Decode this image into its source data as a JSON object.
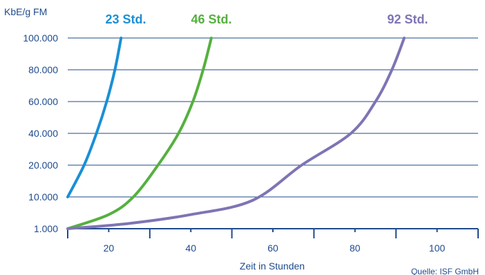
{
  "chart_data": {
    "type": "line",
    "ylabel": "KbE/g FM",
    "xlabel": "Zeit in Stunden",
    "source": "Quelle: ISF GmbH",
    "x_ticks": [
      20,
      40,
      60,
      80,
      100
    ],
    "y_ticks": [
      "1.000",
      "10.000",
      "20.000",
      "40.000",
      "60.000",
      "80.000",
      "100.000"
    ],
    "y_tick_values": [
      1000,
      10000,
      20000,
      40000,
      60000,
      80000,
      100000
    ],
    "xlim": [
      10,
      110
    ],
    "grid": true,
    "series": [
      {
        "name": "23 Std.",
        "color": "#1a8fd6",
        "points": [
          [
            10,
            10000
          ],
          [
            14,
            20000
          ],
          [
            17,
            40000
          ],
          [
            19.5,
            60000
          ],
          [
            21.5,
            80000
          ],
          [
            23,
            100000
          ]
        ]
      },
      {
        "name": "46 Std.",
        "color": "#55b03f",
        "points": [
          [
            10,
            1000
          ],
          [
            20,
            5000
          ],
          [
            26,
            10000
          ],
          [
            32,
            20000
          ],
          [
            37,
            40000
          ],
          [
            40.5,
            60000
          ],
          [
            43,
            80000
          ],
          [
            45,
            100000
          ]
        ]
      },
      {
        "name": "92 Std.",
        "color": "#7f74b4",
        "points": [
          [
            10,
            1000
          ],
          [
            25,
            2500
          ],
          [
            40,
            5000
          ],
          [
            55,
            9000
          ],
          [
            67,
            20000
          ],
          [
            79,
            40000
          ],
          [
            85,
            60000
          ],
          [
            89,
            80000
          ],
          [
            92,
            100000
          ]
        ]
      }
    ]
  }
}
